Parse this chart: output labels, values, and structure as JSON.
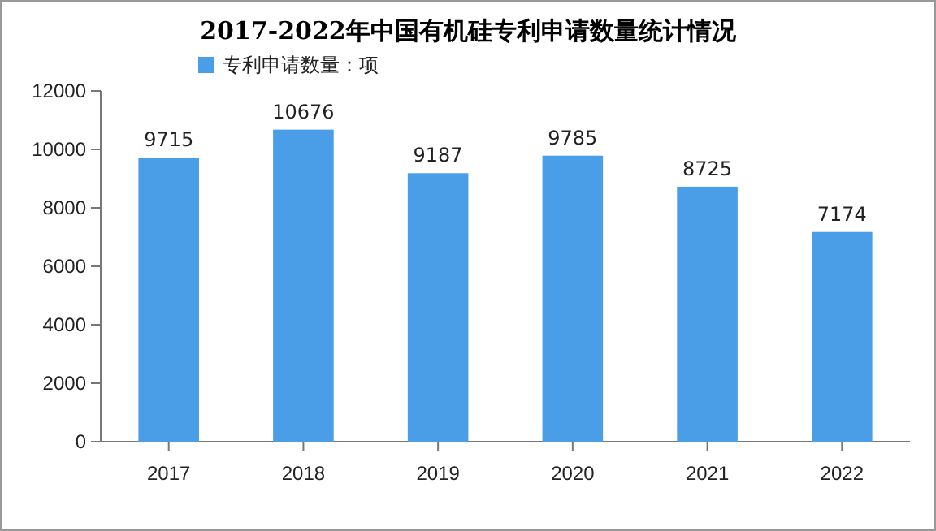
{
  "chart_data": {
    "type": "bar",
    "title": "2017-2022年中国有机硅专利申请数量统计情况",
    "categories": [
      "2017",
      "2018",
      "2019",
      "2020",
      "2021",
      "2022"
    ],
    "series": [
      {
        "name": "专利申请数量：项",
        "color": "#4a9ee8",
        "values": [
          9715,
          10676,
          9187,
          9785,
          8725,
          7174
        ]
      }
    ],
    "ylim": [
      0,
      12000
    ],
    "yticks": [
      0,
      2000,
      4000,
      6000,
      8000,
      10000,
      12000
    ],
    "grid": false,
    "legend": "top left",
    "data_labels": true
  }
}
